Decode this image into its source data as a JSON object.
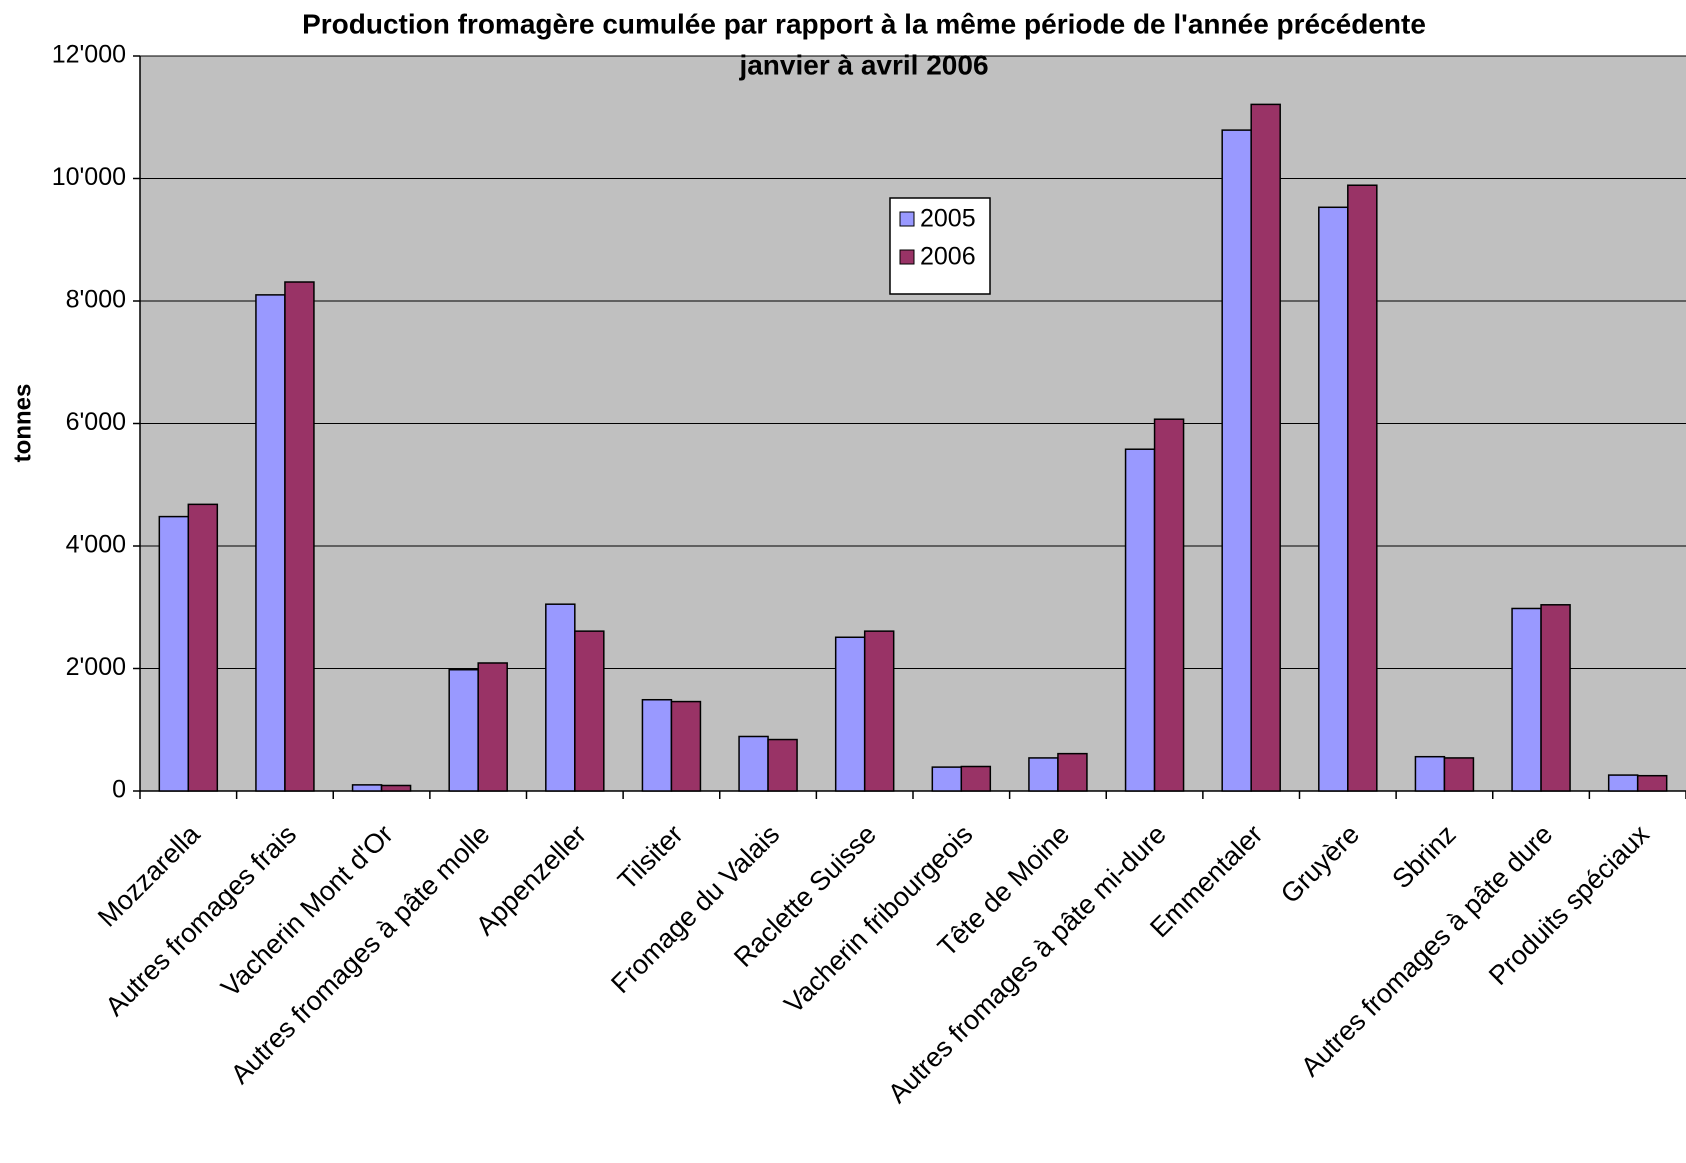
{
  "chart_data": {
    "type": "bar",
    "title": "Production fromagère cumulée par rapport à la même période de l'année précédente",
    "subtitle": "janvier à avril 2006",
    "y_label": "tonnes",
    "categories": [
      "Mozzarella",
      "Autres fromages frais",
      "Vacherin Mont d'Or",
      "Autres fromages à pâte molle",
      "Appenzeller",
      "Tilsiter",
      "Fromage du Valais",
      "Raclette Suisse",
      "Vacherin fribourgeois",
      "Tête de Moine",
      "Autres fromages à pâte mi-dure",
      "Emmentaler",
      "Gruyère",
      "Sbrinz",
      "Autres fromages à pâte dure",
      "Produits spéciaux"
    ],
    "series": [
      {
        "name": "2005",
        "color": "#9999ff",
        "values": [
          4480,
          8100,
          100,
          1980,
          3050,
          1490,
          890,
          2510,
          390,
          540,
          5580,
          10790,
          9530,
          560,
          2980,
          260
        ]
      },
      {
        "name": "2006",
        "color": "#993366",
        "values": [
          4680,
          8310,
          90,
          2090,
          2610,
          1460,
          840,
          2610,
          400,
          610,
          6070,
          11210,
          9890,
          540,
          3040,
          250
        ]
      }
    ],
    "ylim": [
      0,
      12000
    ],
    "yticks": [
      0,
      {
        "value": 2000,
        "label": "2'000"
      },
      {
        "value": 4000,
        "label": "4'000"
      },
      {
        "value": 6000,
        "label": "6'000"
      },
      {
        "value": 8000,
        "label": "8'000"
      },
      {
        "value": 10000,
        "label": "10'000"
      },
      {
        "value": 12000,
        "label": "12'000"
      }
    ],
    "grid": true,
    "plot_background": "#c0c0c0"
  }
}
